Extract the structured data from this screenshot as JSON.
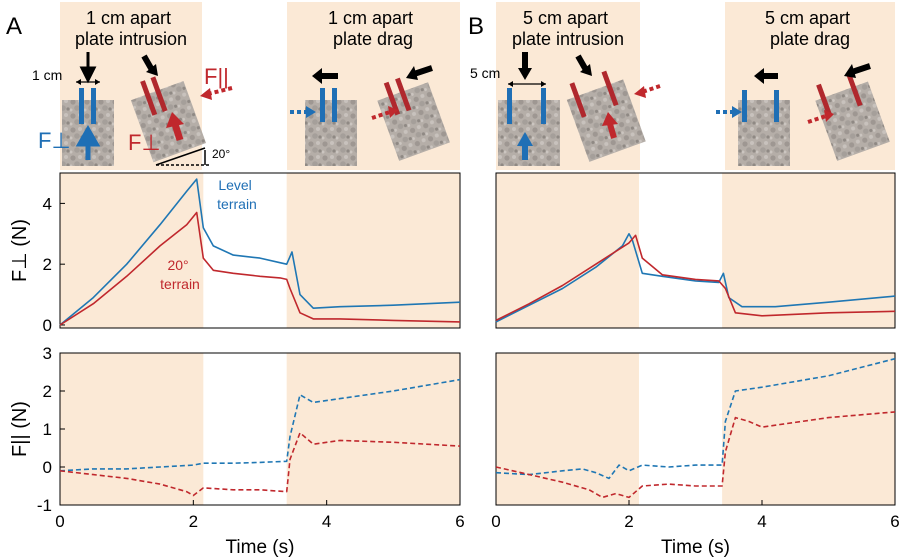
{
  "colors": {
    "blue": "#1f77b4",
    "red": "#c0282d",
    "shade": "#fbe9d6",
    "gravel": "#b3aca6"
  },
  "panels": [
    {
      "letter": "A",
      "phase_left": "1 cm apart\nplate intrusion",
      "phase_right": "1 cm apart\nplate drag",
      "spacing_label": "1 cm",
      "angle_label": "20°",
      "force_perp_symbol": "F⊥",
      "force_par_symbol": "F||",
      "shaded_time_ranges": [
        [
          0,
          2.15
        ],
        [
          3.4,
          6
        ]
      ],
      "annotations": {
        "blue": "Level\nterrain",
        "red": "20°\nterrain"
      }
    },
    {
      "letter": "B",
      "phase_left": "5 cm apart\nplate intrusion",
      "phase_right": "5 cm apart\nplate drag",
      "spacing_label": "5 cm",
      "shaded_time_ranges": [
        [
          0,
          2.15
        ],
        [
          3.4,
          6
        ]
      ]
    }
  ],
  "chart_data": [
    {
      "type": "line",
      "panel": "A-top",
      "ylabel": "F⊥ (N)",
      "xlim": [
        0,
        6
      ],
      "ylim": [
        -0.1,
        5
      ],
      "yticks": [
        0,
        2,
        4
      ],
      "series": [
        {
          "name": "Level terrain",
          "color": "blue",
          "style": "solid",
          "x": [
            0,
            0.5,
            1.0,
            1.5,
            1.9,
            2.05,
            2.15,
            2.3,
            2.6,
            3.0,
            3.3,
            3.4,
            3.48,
            3.6,
            3.8,
            4.2,
            5.0,
            6.0
          ],
          "y": [
            0,
            0.9,
            2.0,
            3.3,
            4.4,
            4.8,
            3.2,
            2.6,
            2.3,
            2.2,
            2.05,
            2.0,
            2.4,
            1.0,
            0.55,
            0.6,
            0.65,
            0.75
          ]
        },
        {
          "name": "20° terrain",
          "color": "red",
          "style": "solid",
          "x": [
            0,
            0.5,
            1.0,
            1.5,
            1.9,
            2.05,
            2.15,
            2.3,
            2.6,
            3.0,
            3.3,
            3.4,
            3.45,
            3.6,
            3.8,
            4.2,
            5.0,
            6.0
          ],
          "y": [
            0,
            0.7,
            1.6,
            2.6,
            3.3,
            3.7,
            2.2,
            1.8,
            1.7,
            1.6,
            1.55,
            1.5,
            1.2,
            0.4,
            0.2,
            0.2,
            0.15,
            0.1
          ]
        }
      ]
    },
    {
      "type": "line",
      "panel": "A-bottom",
      "ylabel": "F|| (N)",
      "xlim": [
        0,
        6
      ],
      "ylim": [
        -1,
        3
      ],
      "yticks": [
        -1,
        0,
        1,
        2,
        3
      ],
      "xticks": [
        0,
        2,
        4,
        6
      ],
      "xlabel": "Time (s)",
      "series": [
        {
          "name": "Level terrain",
          "color": "blue",
          "style": "dashed",
          "x": [
            0,
            0.5,
            1.0,
            1.5,
            2.0,
            2.15,
            2.6,
            3.0,
            3.4,
            3.45,
            3.6,
            3.8,
            4.2,
            5.0,
            6.0
          ],
          "y": [
            -0.1,
            -0.05,
            -0.05,
            0.0,
            0.05,
            0.1,
            0.1,
            0.12,
            0.15,
            0.8,
            1.9,
            1.7,
            1.8,
            2.0,
            2.3
          ]
        },
        {
          "name": "20° terrain",
          "color": "red",
          "style": "dashed",
          "x": [
            0,
            0.5,
            1.0,
            1.5,
            1.9,
            2.0,
            2.15,
            2.6,
            3.0,
            3.4,
            3.45,
            3.6,
            3.8,
            4.2,
            5.0,
            6.0
          ],
          "y": [
            -0.1,
            -0.2,
            -0.3,
            -0.45,
            -0.65,
            -0.75,
            -0.55,
            -0.6,
            -0.6,
            -0.65,
            0.2,
            0.9,
            0.6,
            0.7,
            0.65,
            0.55
          ]
        }
      ]
    },
    {
      "type": "line",
      "panel": "B-top",
      "xlim": [
        0,
        6
      ],
      "ylim": [
        -0.1,
        5
      ],
      "series": [
        {
          "name": "Level terrain",
          "color": "blue",
          "style": "solid",
          "x": [
            0,
            0.5,
            1.0,
            1.5,
            1.9,
            2.0,
            2.05,
            2.2,
            2.5,
            3.0,
            3.35,
            3.42,
            3.5,
            3.7,
            4.2,
            5.0,
            6.0
          ],
          "y": [
            0.1,
            0.65,
            1.2,
            1.9,
            2.6,
            3.0,
            2.8,
            1.7,
            1.6,
            1.45,
            1.4,
            1.7,
            0.9,
            0.6,
            0.6,
            0.75,
            0.95
          ]
        },
        {
          "name": "20° terrain",
          "color": "red",
          "style": "solid",
          "x": [
            0,
            0.5,
            1.0,
            1.5,
            2.0,
            2.1,
            2.2,
            2.5,
            3.0,
            3.35,
            3.45,
            3.6,
            4.0,
            5.0,
            6.0
          ],
          "y": [
            0.15,
            0.7,
            1.3,
            2.0,
            2.7,
            2.95,
            2.2,
            1.65,
            1.5,
            1.45,
            1.2,
            0.4,
            0.3,
            0.4,
            0.45
          ]
        }
      ]
    },
    {
      "type": "line",
      "panel": "B-bottom",
      "xlim": [
        0,
        6
      ],
      "ylim": [
        -1,
        3
      ],
      "xticks": [
        0,
        2,
        4,
        6
      ],
      "xlabel": "Time (s)",
      "series": [
        {
          "name": "Level terrain",
          "color": "blue",
          "style": "dashed",
          "x": [
            0,
            0.5,
            1.0,
            1.3,
            1.5,
            1.7,
            1.85,
            2.0,
            2.2,
            2.6,
            3.0,
            3.4,
            3.45,
            3.6,
            4.0,
            5.0,
            6.0
          ],
          "y": [
            -0.15,
            -0.2,
            -0.1,
            -0.05,
            -0.15,
            -0.3,
            0.05,
            -0.1,
            0.05,
            0.0,
            0.05,
            0.05,
            1.2,
            2.0,
            2.1,
            2.4,
            2.85
          ]
        },
        {
          "name": "20° terrain",
          "color": "red",
          "style": "dashed",
          "x": [
            0,
            0.5,
            1.0,
            1.4,
            1.6,
            1.8,
            2.0,
            2.2,
            2.6,
            3.0,
            3.4,
            3.45,
            3.6,
            3.8,
            4.0,
            5.0,
            6.0
          ],
          "y": [
            0.0,
            -0.2,
            -0.4,
            -0.6,
            -0.8,
            -0.7,
            -0.8,
            -0.5,
            -0.45,
            -0.5,
            -0.5,
            0.4,
            1.3,
            1.2,
            1.05,
            1.3,
            1.45
          ]
        }
      ]
    }
  ]
}
